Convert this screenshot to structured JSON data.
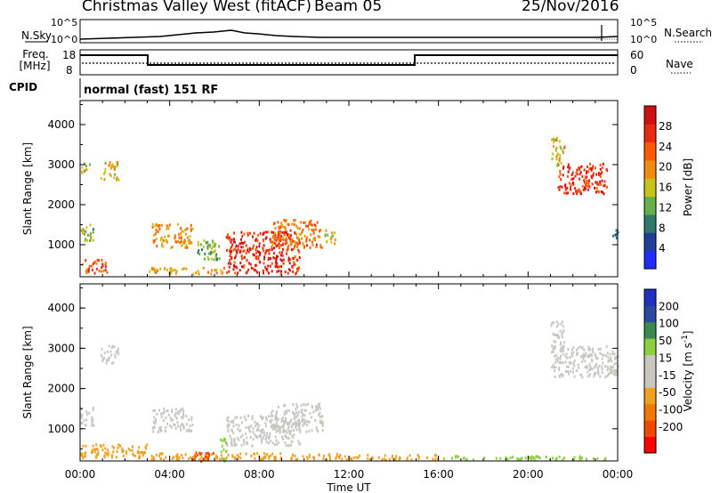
{
  "header": {
    "title": "Christmas Valley West (fitACF)",
    "beam": "Beam 05",
    "date": "25/Nov/2016"
  },
  "top_panels": {
    "nsky_label": "N.Sky",
    "nsearch_label": "N.Search",
    "n_ticks_left": [
      "10^5",
      "10^0"
    ],
    "n_ticks_right": [
      "10^5",
      "10^0"
    ],
    "freq_label": "Freq.",
    "freq_unit": "[MHz]",
    "freq_ticks": [
      "18",
      "8"
    ],
    "nave_label": "Nave",
    "nave_ticks": [
      "60",
      "0"
    ],
    "cpid_label": "CPID",
    "cpid_value": "normal (fast) 151 RF"
  },
  "colors": {
    "power_scale": [
      "#1f2bff",
      "#1f3f9a",
      "#2e7a6a",
      "#66b04a",
      "#c9c21a",
      "#f08c10",
      "#ff5a00",
      "#e82a10",
      "#cf1010"
    ],
    "velocity_scale": [
      "#ff0000",
      "#f04800",
      "#f07800",
      "#f0a020",
      "#c8c8c0",
      "#c8c8c0",
      "#8cd040",
      "#3a8a50",
      "#2a4aa0",
      "#2030c0"
    ]
  },
  "chart_data": [
    {
      "type": "heatmap",
      "parameter": "Power",
      "ylabel": "Slant Range [km]",
      "ylim": [
        200,
        4600
      ],
      "yticks": [
        "1000",
        "2000",
        "3000",
        "4000"
      ],
      "colorbar_label": "Power [dB]",
      "colorbar_ticks": [
        "4",
        "8",
        "12",
        "16",
        "20",
        "24",
        "28"
      ],
      "colorbar_range": [
        0,
        32
      ],
      "xlim_hours": [
        0,
        24
      ],
      "regions": [
        {
          "t": [
            0.0,
            0.6
          ],
          "r": [
            1100,
            1550
          ],
          "level": 15
        },
        {
          "t": [
            0.0,
            0.4
          ],
          "r": [
            2800,
            3100
          ],
          "level": 15
        },
        {
          "t": [
            0.9,
            1.7
          ],
          "r": [
            2650,
            3100
          ],
          "level": 17
        },
        {
          "t": [
            3.2,
            5.0
          ],
          "r": [
            950,
            1550
          ],
          "level": 19
        },
        {
          "t": [
            5.2,
            6.2
          ],
          "r": [
            600,
            1150
          ],
          "level": 12
        },
        {
          "t": [
            6.5,
            9.8
          ],
          "r": [
            300,
            1350
          ],
          "level": 27
        },
        {
          "t": [
            8.5,
            10.8
          ],
          "r": [
            950,
            1650
          ],
          "level": 21
        },
        {
          "t": [
            0.0,
            1.2
          ],
          "r": [
            300,
            650
          ],
          "level": 24
        },
        {
          "t": [
            3.0,
            6.5
          ],
          "r": [
            300,
            450
          ],
          "level": 18
        },
        {
          "t": [
            10.9,
            11.4
          ],
          "r": [
            1050,
            1400
          ],
          "level": 17
        },
        {
          "t": [
            21.3,
            23.5
          ],
          "r": [
            2300,
            3050
          ],
          "level": 27
        },
        {
          "t": [
            21.0,
            21.6
          ],
          "r": [
            3000,
            3700
          ],
          "level": 18
        },
        {
          "t": [
            23.7,
            24.0
          ],
          "r": [
            1100,
            1450
          ],
          "level": 8
        }
      ]
    },
    {
      "type": "heatmap",
      "parameter": "Velocity",
      "ylabel": "Slant Range [km]",
      "ylim": [
        200,
        4600
      ],
      "yticks": [
        "1000",
        "2000",
        "3000",
        "4000"
      ],
      "colorbar_label": "Velocity [m s^-1]",
      "colorbar_ticks": [
        "200",
        "100",
        "50",
        "15",
        "-15",
        "-50",
        "-100",
        "-200"
      ],
      "colorbar_range": [
        -250,
        250
      ],
      "xlabel": "Time UT",
      "xticks": [
        "00:00",
        "04:00",
        "08:00",
        "12:00",
        "16:00",
        "20:00",
        "00:00"
      ],
      "xlim_hours": [
        0,
        24
      ],
      "regions": [
        {
          "t": [
            0.0,
            0.6
          ],
          "r": [
            1100,
            1550
          ],
          "level": 0
        },
        {
          "t": [
            0.9,
            1.7
          ],
          "r": [
            2650,
            3100
          ],
          "level": 0
        },
        {
          "t": [
            3.2,
            5.0
          ],
          "r": [
            950,
            1550
          ],
          "level": 0
        },
        {
          "t": [
            6.5,
            9.8
          ],
          "r": [
            600,
            1350
          ],
          "level": 0
        },
        {
          "t": [
            8.5,
            10.8
          ],
          "r": [
            950,
            1650
          ],
          "level": 0
        },
        {
          "t": [
            0.0,
            3.0
          ],
          "r": [
            300,
            650
          ],
          "level": -40
        },
        {
          "t": [
            3.0,
            11.5
          ],
          "r": [
            250,
            420
          ],
          "level": -40
        },
        {
          "t": [
            11.5,
            16.0
          ],
          "r": [
            250,
            380
          ],
          "level": -30
        },
        {
          "t": [
            16.0,
            23.5
          ],
          "r": [
            250,
            350
          ],
          "level": 25
        },
        {
          "t": [
            21.0,
            24.0
          ],
          "r": [
            2300,
            3100
          ],
          "level": 0
        },
        {
          "t": [
            21.0,
            21.6
          ],
          "r": [
            3000,
            3700
          ],
          "level": 0
        },
        {
          "t": [
            5.0,
            6.0
          ],
          "r": [
            200,
            450
          ],
          "level": -150
        },
        {
          "t": [
            6.2,
            6.5
          ],
          "r": [
            200,
            800
          ],
          "level": 40
        }
      ]
    }
  ]
}
